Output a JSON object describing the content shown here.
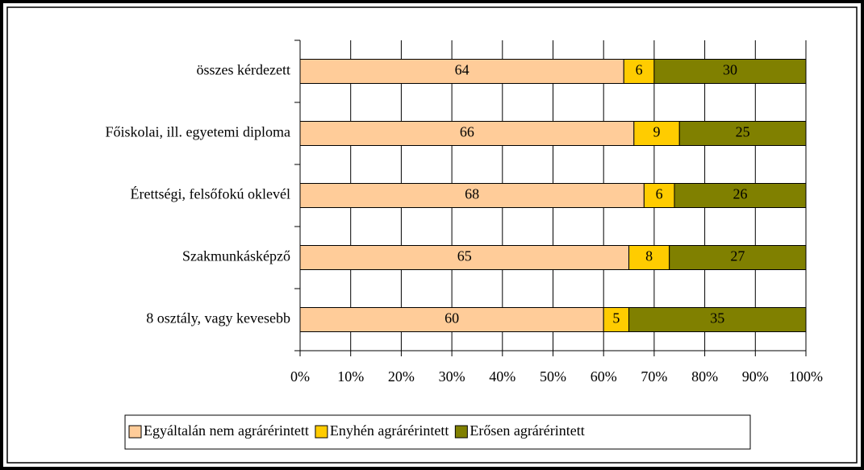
{
  "chart_data": {
    "type": "bar",
    "orientation": "horizontal",
    "stacked": true,
    "categories": [
      "összes kérdezett",
      "Főiskolai, ill. egyetemi diploma",
      "Érettségi, felsőfokú oklevél",
      "Szakmunkásképző",
      "8 osztály, vagy kevesebb"
    ],
    "series": [
      {
        "name": "Egyáltalán nem agrárérintett",
        "color": "#ffcc99",
        "values": [
          64,
          66,
          68,
          65,
          60
        ]
      },
      {
        "name": "Enyhén agrárérintett",
        "color": "#ffcc00",
        "values": [
          6,
          9,
          6,
          8,
          5
        ]
      },
      {
        "name": "Erősen agrárérintett",
        "color": "#808000",
        "values": [
          30,
          25,
          26,
          27,
          35
        ]
      }
    ],
    "xlim": [
      0,
      100
    ],
    "xticks": [
      {
        "value": 0,
        "label": "0%"
      },
      {
        "value": 10,
        "label": "10%"
      },
      {
        "value": 20,
        "label": "20%"
      },
      {
        "value": 30,
        "label": "30%"
      },
      {
        "value": 40,
        "label": "40%"
      },
      {
        "value": 50,
        "label": "50%"
      },
      {
        "value": 60,
        "label": "60%"
      },
      {
        "value": 70,
        "label": "70%"
      },
      {
        "value": 80,
        "label": "80%"
      },
      {
        "value": 90,
        "label": "90%"
      },
      {
        "value": 100,
        "label": "100%"
      }
    ],
    "grid": true,
    "legend": "bottom"
  }
}
